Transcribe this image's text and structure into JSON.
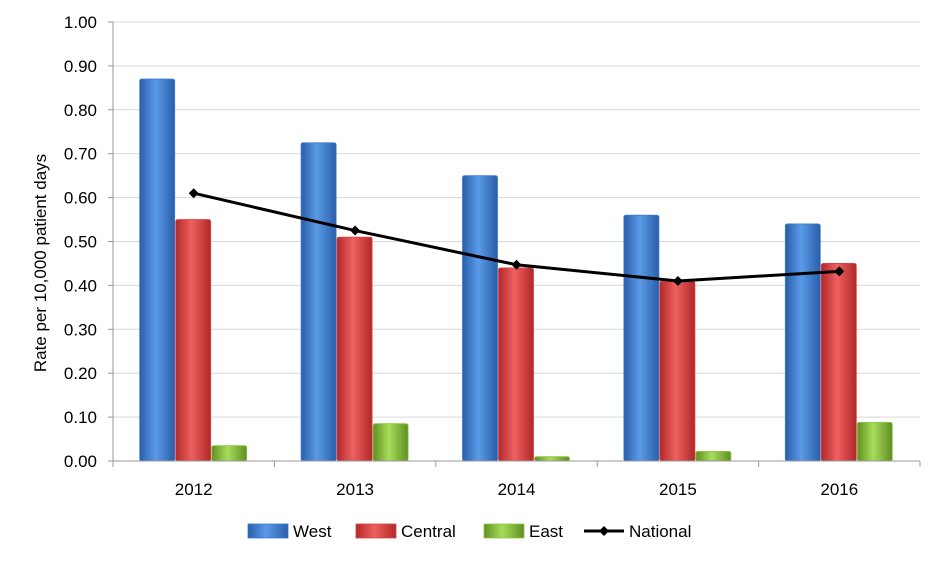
{
  "chart_data": {
    "type": "bar",
    "ylabel": "Rate per 10,000 patient days",
    "ylim": [
      0,
      1.0
    ],
    "yticks": [
      "0.00",
      "0.10",
      "0.20",
      "0.30",
      "0.40",
      "0.50",
      "0.60",
      "0.70",
      "0.80",
      "0.90",
      "1.00"
    ],
    "categories": [
      "2012",
      "2013",
      "2014",
      "2015",
      "2016"
    ],
    "grid": true,
    "legend_position": "bottom",
    "series": [
      {
        "name": "West",
        "kind": "bar",
        "color": "#3a7bd5",
        "values": [
          0.87,
          0.725,
          0.65,
          0.56,
          0.54
        ]
      },
      {
        "name": "Central",
        "kind": "bar",
        "color": "#e04040",
        "values": [
          0.55,
          0.51,
          0.44,
          0.41,
          0.45
        ]
      },
      {
        "name": "East",
        "kind": "bar",
        "color": "#8cc63f",
        "values": [
          0.035,
          0.085,
          0.01,
          0.022,
          0.088
        ]
      },
      {
        "name": "National",
        "kind": "line",
        "color": "#000000",
        "values": [
          0.61,
          0.525,
          0.447,
          0.41,
          0.432
        ]
      }
    ]
  }
}
